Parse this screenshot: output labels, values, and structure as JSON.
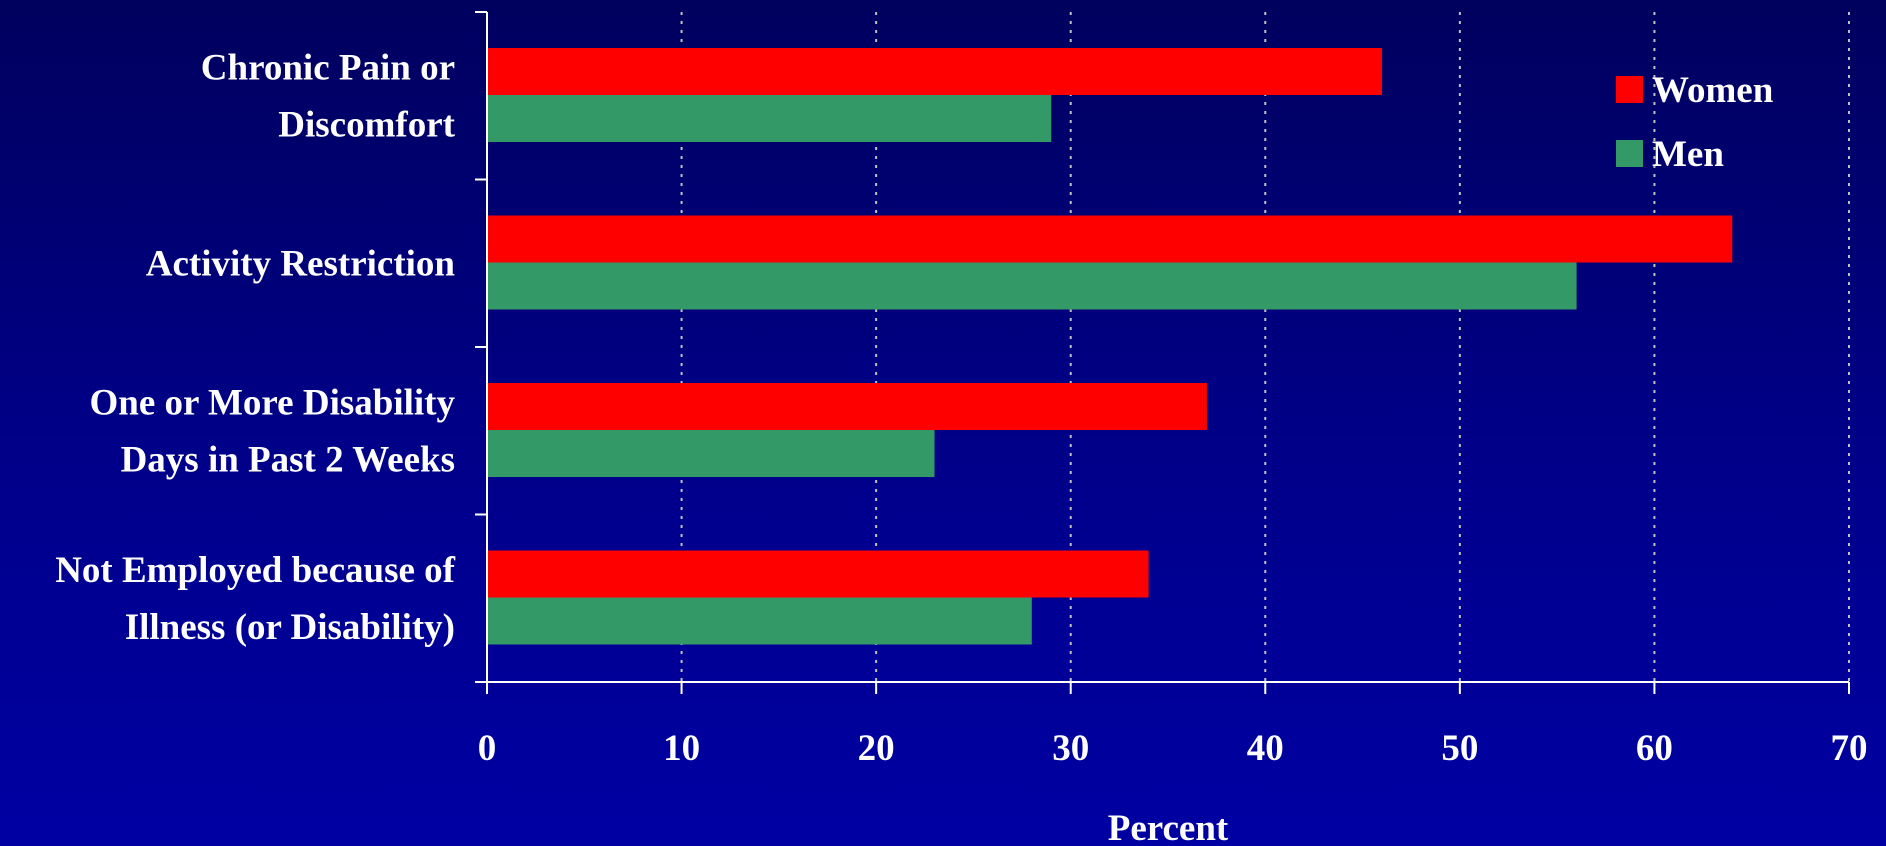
{
  "chart_data": {
    "type": "bar",
    "orientation": "horizontal",
    "categories": [
      [
        "Chronic Pain or",
        "Discomfort"
      ],
      [
        "Activity Restriction"
      ],
      [
        "One or More Disability",
        "Days in Past 2 Weeks"
      ],
      [
        "Not Employed because of",
        "Illness (or Disability)"
      ]
    ],
    "series": [
      {
        "name": "Women",
        "values": [
          46,
          64,
          37,
          34
        ],
        "color": "#ff0000"
      },
      {
        "name": "Men",
        "values": [
          29,
          56,
          23,
          28
        ],
        "color": "#339966"
      }
    ],
    "xlabel": "Percent",
    "xlim": [
      0,
      70
    ],
    "xticks": [
      0,
      10,
      20,
      30,
      40,
      50,
      60,
      70
    ],
    "grid": "vertical dashed",
    "legend_position": "top-right",
    "colors": {
      "axis": "#ffffff",
      "grid": "#c0c0c0",
      "text": "#ffffff"
    }
  }
}
